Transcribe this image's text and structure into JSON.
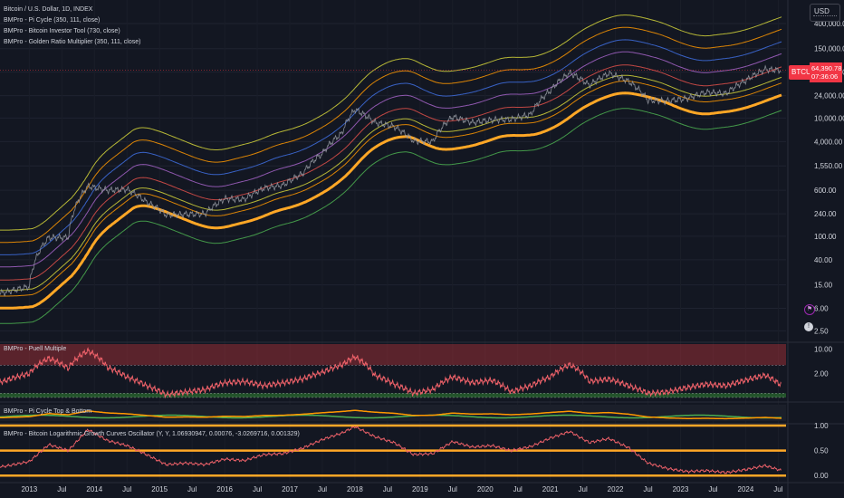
{
  "header": {
    "symbol_title": "Bitcoin / U.S. Dollar, 1D, INDEX",
    "currency": "USD"
  },
  "legend": [
    "BMPro - Pi Cycle (350, 111, close)",
    "BMPro - Bitcoin Investor Tool (730, close)",
    "BMPro - Golden Ratio Multiplier (350, 111, close)"
  ],
  "price_badge": {
    "symbol": "BTCUSD",
    "price": "64,390.78",
    "countdown": "07:36:06",
    "color": "#f23645"
  },
  "panes": {
    "puell_title": "BMPro - Puell Multiple",
    "picycle_title": "BMPro - Pi Cycle Top & Bottom",
    "logcurve_title": "BMPro - Bitcoin Logarithmic Growth Curves Oscillator (Y, Y, 1.06930947, 0.00076, -3.0269716, 0.001329)"
  },
  "icons": [
    "flag-icon",
    "alert-icon"
  ],
  "colors": {
    "background": "#131722",
    "price": "#f23645",
    "puell_line": "#f0626a",
    "golden_ratio_main": "#ffa726",
    "band_yellow": "#d4d43a",
    "band_orange": "#ff9800",
    "band_blue": "#3f6fe0",
    "band_purple": "#a463c7",
    "band_red": "#e0504a",
    "band_green": "#4caf50",
    "puell_zone_top": "#b2323a",
    "puell_zone_bottom": "#2e7d32"
  },
  "chart_data": [
    {
      "type": "line",
      "title": "Bitcoin / U.S. Dollar, 1D, INDEX",
      "yscale": "log",
      "ylim": [
        1.6,
        1000000
      ],
      "x_ticks": [
        "2013",
        "Jul",
        "2014",
        "Jul",
        "2015",
        "Jul",
        "2016",
        "Jul",
        "2017",
        "Jul",
        "2018",
        "Jul",
        "2019",
        "Jul",
        "2020",
        "Jul",
        "2021",
        "Jul",
        "2022",
        "Jul",
        "2023",
        "Jul",
        "2024",
        "Jul"
      ],
      "y_ticks": [
        "400,000.00",
        "150,000.00",
        "60,000.00",
        "24,000.00",
        "10,000.00",
        "4,000.00",
        "1,550.00",
        "600.00",
        "240.00",
        "100.00",
        "40.00",
        "15.00",
        "6.00",
        "2.50"
      ],
      "x": [
        2012.6,
        2013.0,
        2013.3,
        2013.6,
        2013.9,
        2014.2,
        2014.5,
        2014.8,
        2015.1,
        2015.4,
        2015.7,
        2016.0,
        2016.3,
        2016.6,
        2016.9,
        2017.2,
        2017.5,
        2017.8,
        2018.0,
        2018.3,
        2018.6,
        2018.9,
        2019.2,
        2019.5,
        2019.8,
        2020.1,
        2020.4,
        2020.7,
        2021.0,
        2021.3,
        2021.6,
        2021.9,
        2022.2,
        2022.5,
        2022.8,
        2023.1,
        2023.4,
        2023.7,
        2024.0,
        2024.3,
        2024.55
      ],
      "series": [
        {
          "name": "BTCUSD",
          "values": [
            11,
            14,
            95,
            95,
            700,
            600,
            620,
            380,
            230,
            235,
            240,
            430,
            420,
            650,
            730,
            1150,
            2500,
            5500,
            14000,
            8500,
            7200,
            4100,
            4000,
            10500,
            8400,
            9300,
            9500,
            11500,
            29000,
            58000,
            36000,
            57000,
            42000,
            20000,
            19500,
            21500,
            27500,
            26000,
            43000,
            67000,
            64390.78
          ]
        }
      ]
    },
    {
      "type": "line",
      "title": "BMPro - Puell Multiple",
      "yscale": "log",
      "y_ticks": [
        "10.00",
        "2.00"
      ],
      "x": [
        2012.6,
        2013.0,
        2013.3,
        2013.6,
        2013.9,
        2014.2,
        2014.5,
        2014.8,
        2015.1,
        2015.4,
        2015.7,
        2016.0,
        2016.3,
        2016.6,
        2016.9,
        2017.2,
        2017.5,
        2017.8,
        2018.0,
        2018.3,
        2018.6,
        2018.9,
        2019.2,
        2019.5,
        2019.8,
        2020.1,
        2020.4,
        2020.7,
        2021.0,
        2021.3,
        2021.6,
        2021.9,
        2022.2,
        2022.5,
        2022.8,
        2023.1,
        2023.4,
        2023.7,
        2024.0,
        2024.3,
        2024.55
      ],
      "series": [
        {
          "name": "BMPro - Puell Multiple",
          "values": [
            1.2,
            2.0,
            5.5,
            2.8,
            9.0,
            3.0,
            1.6,
            0.9,
            0.5,
            0.6,
            0.7,
            1.1,
            1.2,
            0.9,
            1.1,
            1.4,
            2.2,
            3.5,
            6.0,
            1.8,
            1.0,
            0.55,
            0.7,
            1.6,
            1.1,
            1.3,
            0.6,
            0.9,
            1.6,
            3.6,
            1.2,
            1.4,
            0.9,
            0.55,
            0.6,
            0.8,
            1.0,
            0.9,
            1.3,
            1.8,
            0.9
          ]
        }
      ]
    },
    {
      "type": "line",
      "title": "BMPro - Bitcoin Logarithmic Growth Curves Oscillator (Y, Y, 1.06930947, 0.00076, -3.0269716, 0.001329)",
      "ylim": [
        -0.05,
        1.0
      ],
      "y_ticks": [
        "1.00",
        "0.50",
        "0.00"
      ],
      "x": [
        2012.6,
        2013.0,
        2013.3,
        2013.6,
        2013.9,
        2014.2,
        2014.5,
        2014.8,
        2015.1,
        2015.4,
        2015.7,
        2016.0,
        2016.3,
        2016.6,
        2016.9,
        2017.2,
        2017.5,
        2017.8,
        2018.0,
        2018.3,
        2018.6,
        2018.9,
        2019.2,
        2019.5,
        2019.8,
        2020.1,
        2020.4,
        2020.7,
        2021.0,
        2021.3,
        2021.6,
        2021.9,
        2022.2,
        2022.5,
        2022.8,
        2023.1,
        2023.4,
        2023.7,
        2024.0,
        2024.3,
        2024.55
      ],
      "series": [
        {
          "name": "BMPro - Bitcoin Logarithmic Growth Curves Oscillator",
          "values": [
            0.18,
            0.28,
            0.62,
            0.5,
            0.92,
            0.7,
            0.6,
            0.42,
            0.22,
            0.25,
            0.22,
            0.33,
            0.3,
            0.42,
            0.44,
            0.55,
            0.72,
            0.85,
            0.98,
            0.78,
            0.66,
            0.42,
            0.44,
            0.68,
            0.57,
            0.6,
            0.5,
            0.58,
            0.75,
            0.88,
            0.66,
            0.74,
            0.56,
            0.25,
            0.14,
            0.08,
            0.1,
            0.06,
            0.12,
            0.2,
            0.1
          ]
        }
      ]
    }
  ]
}
